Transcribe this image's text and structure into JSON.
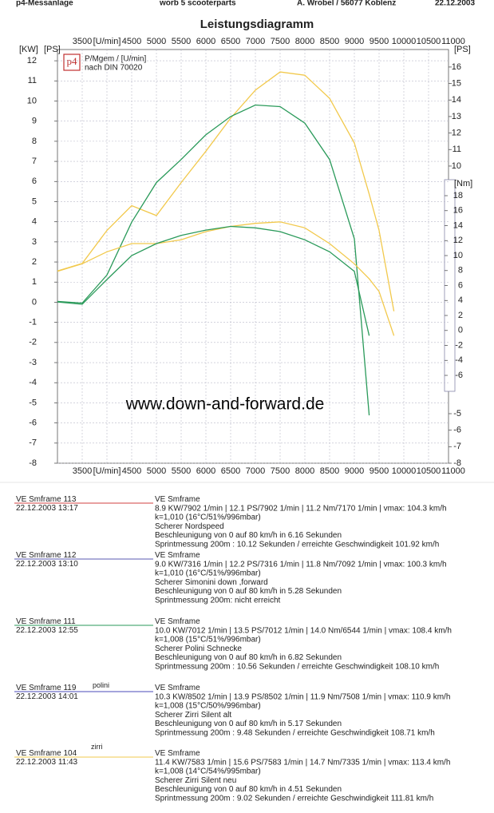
{
  "header": {
    "left": "p4-Messanlage",
    "center": "worb 5 scooterparts",
    "right": "A. Wrobel / 56077 Koblenz",
    "date": "22.12.2003"
  },
  "chart_data": {
    "type": "line",
    "title": "Leistungsdiagramm",
    "y_label": "[KW]",
    "y2_label": "[PS]",
    "y3_label": "[Nm]",
    "legend_text": [
      "P/Mgem / [U/min]",
      "nach DIN 70020"
    ],
    "logo": "p4",
    "watermark": "www.down-and-forward.de",
    "x": [
      3000,
      3500,
      4000,
      4500,
      5000,
      5500,
      6000,
      6500,
      7000,
      7500,
      8000,
      8500,
      9000,
      9300,
      9500,
      9800
    ],
    "xlim": [
      3000,
      11000
    ],
    "xticks": [
      3500,
      {
        "value": 4000,
        "label": "[U/min]"
      },
      4500,
      5000,
      5500,
      6000,
      6500,
      7000,
      7500,
      8000,
      8500,
      9000,
      9500,
      10000,
      10500,
      11000
    ],
    "ylim": [
      -8,
      12.56
    ],
    "yticks": [
      12,
      11,
      10,
      9,
      8,
      7,
      6,
      5,
      4,
      3,
      2,
      1,
      0,
      -1,
      -2,
      -3,
      -4,
      -5,
      -6,
      -7,
      -8
    ],
    "y2lim": [
      -8,
      17.06
    ],
    "y2ticks": [
      16,
      15,
      14,
      13,
      12,
      11,
      10,
      -5,
      -6,
      -7,
      -8
    ],
    "y3lim": [
      -17.73,
      37.52
    ],
    "y3ticks": [
      18,
      16,
      14,
      12,
      10,
      8,
      6,
      4,
      2,
      0,
      -2,
      -4,
      -6
    ],
    "grid": true,
    "series": [
      {
        "color": "#f2c94c",
        "axis": "y2",
        "values": [
          3.65,
          4.1,
          6.1,
          7.6,
          7.0,
          9.0,
          10.9,
          12.9,
          14.6,
          15.7,
          15.5,
          14.1,
          11.4,
          8.3,
          6.1,
          1.2
        ]
      },
      {
        "color": "#2a9a5a",
        "axis": "y2",
        "values": [
          1.8,
          1.7,
          3.4,
          6.6,
          9.0,
          10.4,
          11.9,
          13.0,
          13.7,
          13.6,
          12.6,
          10.4,
          5.6,
          -5.1,
          null,
          null
        ]
      },
      {
        "color": "#f2c94c",
        "axis": "y3",
        "values": [
          7.9,
          8.9,
          10.5,
          11.6,
          11.6,
          12.1,
          13.2,
          13.9,
          14.3,
          14.5,
          13.7,
          11.6,
          8.9,
          6.9,
          5.2,
          -0.7
        ]
      },
      {
        "color": "#2a9a5a",
        "axis": "y3",
        "values": [
          3.8,
          3.5,
          6.8,
          10.0,
          11.6,
          12.7,
          13.4,
          13.9,
          13.7,
          13.2,
          12.1,
          10.5,
          7.9,
          -0.7,
          null,
          null
        ]
      }
    ]
  },
  "runs": [
    {
      "name": "VE Smframe 113",
      "date": "22.12.2003  13:17",
      "color": "#d04040",
      "lines": [
        "VE Smframe",
        "8.9 KW/7902 1/min  |  12.1 PS/7902 1/min  |  11.2 Nm/7170 1/min  | vmax: 104.3 km/h",
        "k=1,010 (16°C/51%/996mbar)",
        "Scherer Nordspeed",
        "Beschleunigung von 0 auf 80 km/h in 6.16 Sekunden",
        "Sprintmessung 200m : 10.12 Sekunden / erreichte Geschwindigkeit 101.92 km/h"
      ]
    },
    {
      "name": "VE Smframe 112",
      "date": "22.12.2003  13:10",
      "color": "#5a5ab0",
      "lines": [
        "VE Smframe",
        "9.0 KW/7316 1/min  |  12.2 PS/7316 1/min  |  11.8 Nm/7092 1/min  | vmax: 100.3 km/h",
        "k=1,010 (16°C/51%/996mbar)",
        "Scherer Simonini down ,forward",
        "Beschleunigung von 0 auf 80 km/h in 5.28 Sekunden",
        "Sprintmessung 200m: nicht erreicht"
      ]
    },
    {
      "name": "VE Smframe 111",
      "date": "22.12.2003  12:55",
      "color": "#2a9a5a",
      "lines": [
        "VE Smframe",
        "10.0 KW/7012 1/min  |  13.5 PS/7012 1/min  |  14.0 Nm/6544 1/min  | vmax: 108.4 km/h",
        "k=1,008 (15°C/51%/996mbar)",
        "Scherer Polini Schnecke",
        "Beschleunigung von 0 auf 80 km/h in 6.82 Sekunden",
        "Sprintmessung 200m : 10.56 Sekunden / erreichte Geschwindigkeit 108.10 km/h"
      ]
    },
    {
      "name": "VE Smframe 119",
      "note": "polini",
      "date": "22.12.2003  14:01",
      "color": "#4a4ab8",
      "lines": [
        "VE Smframe",
        "10.3 KW/8502 1/min  |  13.9 PS/8502 1/min  |  11.9 Nm/7508 1/min  | vmax: 110.9 km/h",
        "k=1,008 (15°C/50%/996mbar)",
        "Scherer Zirri Silent alt",
        "Beschleunigung von 0 auf 80 km/h in 5.17 Sekunden",
        "Sprintmessung 200m : 9.48 Sekunden / erreichte Geschwindigkeit 108.71 km/h"
      ]
    },
    {
      "name": "VE Smframe 104",
      "note": "zirri",
      "date": "22.12.2003  11:43",
      "color": "#f2c94c",
      "lines": [
        "VE Smframe",
        "11.4 KW/7583 1/min  |  15.6 PS/7583 1/min  |  14.7 Nm/7335 1/min  | vmax: 113.4 km/h",
        "k=1,008 (14°C/54%/995mbar)",
        "Scherer Zirri Silent neu",
        "Beschleunigung von 0 auf 80 km/h in 4.51 Sekunden",
        "Sprintmessung 200m : 9.02 Sekunden / erreichte Geschwindigkeit 111.81 km/h"
      ]
    }
  ]
}
